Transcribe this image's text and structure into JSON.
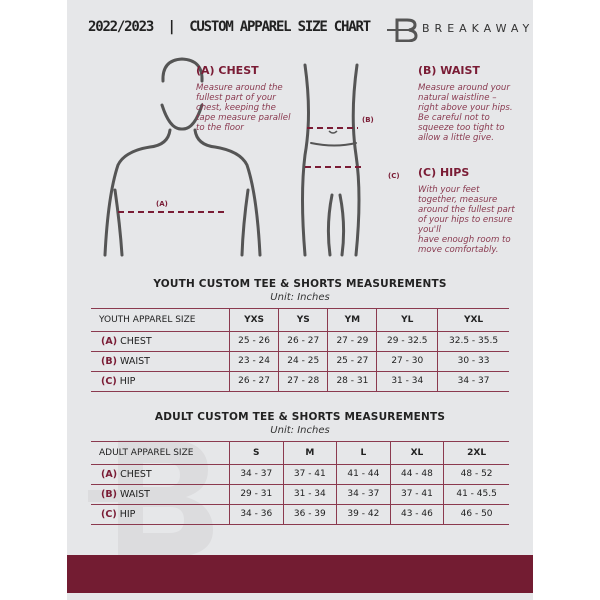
{
  "header": {
    "title": "2022/2023  |  CUSTOM APPAREL SIZE CHART",
    "brand": "BREAKAWAY"
  },
  "guide": {
    "chest": {
      "heading": "(A) CHEST",
      "text": [
        "Measure around the",
        "fullest part of your",
        "chest, keeping the",
        "tape measure parallel",
        "to the floor"
      ],
      "marker": "(A)"
    },
    "waist": {
      "heading": "(B) WAIST",
      "text": [
        "Measure around your",
        "natural waistline –",
        "right above your hips.",
        "Be careful not to",
        "squeeze too tight to",
        "allow a little give."
      ],
      "marker": "(B)"
    },
    "hips": {
      "heading": "(C) HIPS",
      "text": [
        "With your feet",
        "together, measure",
        "around the fullest part",
        "of your hips to ensure",
        "you'll",
        "have enough room to",
        "move comfortably."
      ],
      "marker": "(C)"
    }
  },
  "colors": {
    "accent": "#731c32",
    "background": "#e6e7e9"
  },
  "youth": {
    "title": "YOUTH CUSTOM TEE & SHORTS MEASUREMENTS",
    "unit": "Unit: Inches",
    "header_label": "YOUTH APPAREL SIZE",
    "sizes": [
      "YXS",
      "YS",
      "YM",
      "YL",
      "YXL"
    ],
    "rows": [
      {
        "code": "(A)",
        "name": "CHEST",
        "values": [
          "25 - 26",
          "26 - 27",
          "27 - 29",
          "29 - 32.5",
          "32.5 - 35.5"
        ]
      },
      {
        "code": "(B)",
        "name": "WAIST",
        "values": [
          "23 - 24",
          "24 - 25",
          "25 - 27",
          "27 - 30",
          "30 - 33"
        ]
      },
      {
        "code": "(C)",
        "name": "HIP",
        "values": [
          "26 - 27",
          "27 - 28",
          "28 - 31",
          "31 - 34",
          "34 - 37"
        ]
      }
    ]
  },
  "adult": {
    "title": "ADULT CUSTOM TEE & SHORTS MEASUREMENTS",
    "unit": "Unit: Inches",
    "header_label": "ADULT APPAREL SIZE",
    "sizes": [
      "S",
      "M",
      "L",
      "XL",
      "2XL"
    ],
    "rows": [
      {
        "code": "(A)",
        "name": "CHEST",
        "values": [
          "34 - 37",
          "37 - 41",
          "41 - 44",
          "44 - 48",
          "48 - 52"
        ]
      },
      {
        "code": "(B)",
        "name": "WAIST",
        "values": [
          "29 - 31",
          "31 - 34",
          "34 - 37",
          "37 - 41",
          "41 - 45.5"
        ]
      },
      {
        "code": "(C)",
        "name": "HIP",
        "values": [
          "34 - 36",
          "36 - 39",
          "39 - 42",
          "43 - 46",
          "46 - 50"
        ]
      }
    ]
  }
}
